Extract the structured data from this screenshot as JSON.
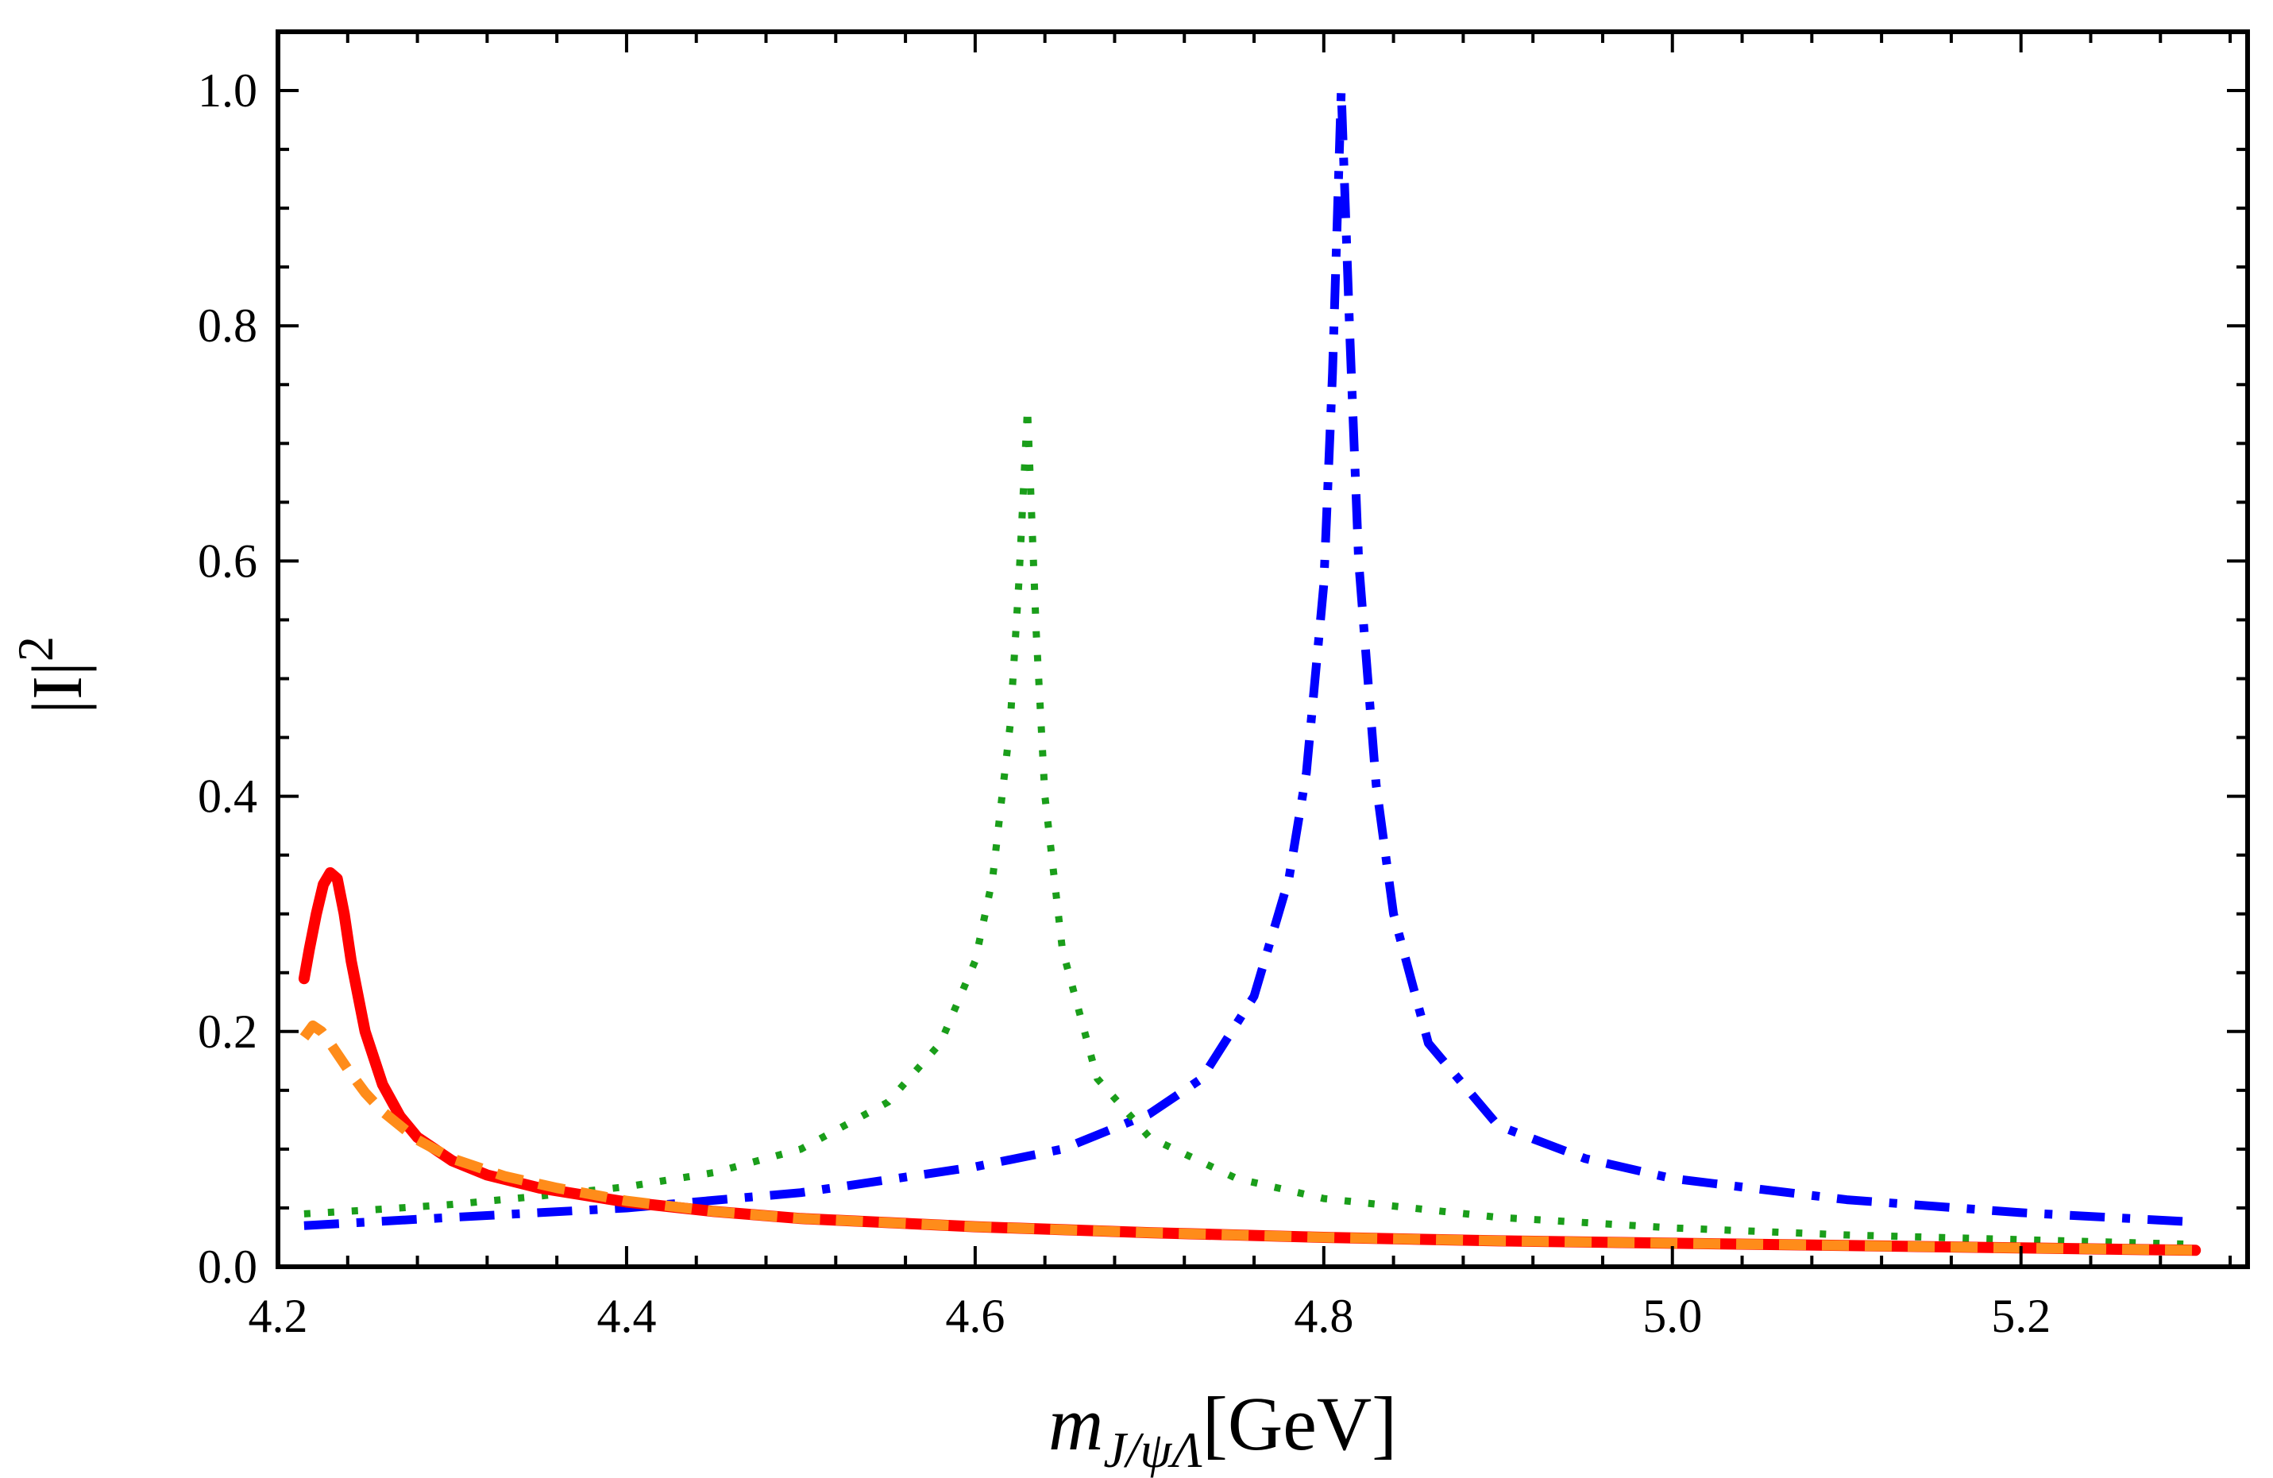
{
  "chart_data": {
    "type": "line",
    "title": "",
    "xlabel": {
      "main": "m",
      "subscript": "J/ψΛ",
      "unit": "[GeV]"
    },
    "ylabel": {
      "base": "|I|",
      "superscript": "2"
    },
    "xlim": [
      4.2,
      5.33
    ],
    "ylim": [
      0.0,
      1.05
    ],
    "xticks": [
      4.2,
      4.4,
      4.6,
      4.8,
      5.0,
      5.2
    ],
    "xtick_labels": [
      "4.2",
      "4.4",
      "4.6",
      "4.8",
      "5.0",
      "5.2"
    ],
    "yticks": [
      0.0,
      0.2,
      0.4,
      0.6,
      0.8,
      1.0
    ],
    "ytick_labels": [
      "0.0",
      "0.2",
      "0.4",
      "0.6",
      "0.8",
      "1.0"
    ],
    "grid": false,
    "series": [
      {
        "name": "solid-red",
        "style": "solid",
        "color": "#ff0000",
        "x": [
          4.215,
          4.218,
          4.222,
          4.226,
          4.23,
          4.234,
          4.238,
          4.242,
          4.25,
          4.26,
          4.27,
          4.28,
          4.3,
          4.32,
          4.35,
          4.4,
          4.45,
          4.5,
          4.6,
          4.7,
          4.8,
          4.9,
          5.0,
          5.1,
          5.2,
          5.3
        ],
        "y": [
          0.245,
          0.27,
          0.3,
          0.325,
          0.335,
          0.33,
          0.3,
          0.26,
          0.2,
          0.155,
          0.128,
          0.11,
          0.09,
          0.078,
          0.067,
          0.055,
          0.047,
          0.041,
          0.034,
          0.029,
          0.025,
          0.022,
          0.02,
          0.018,
          0.016,
          0.014
        ]
      },
      {
        "name": "dashed-orange",
        "style": "dashed",
        "color": "#ff8c1a",
        "x": [
          4.215,
          4.22,
          4.225,
          4.23,
          4.24,
          4.25,
          4.26,
          4.28,
          4.3,
          4.33,
          4.36,
          4.4,
          4.45,
          4.5,
          4.6,
          4.7,
          4.8,
          4.9,
          5.0,
          5.1,
          5.2,
          5.3
        ],
        "y": [
          0.195,
          0.205,
          0.2,
          0.19,
          0.168,
          0.148,
          0.132,
          0.108,
          0.092,
          0.077,
          0.067,
          0.056,
          0.047,
          0.041,
          0.034,
          0.029,
          0.025,
          0.022,
          0.02,
          0.018,
          0.016,
          0.014
        ]
      },
      {
        "name": "dotted-green",
        "style": "dotted",
        "color": "#1a9e1a",
        "x": [
          4.215,
          4.25,
          4.3,
          4.35,
          4.4,
          4.45,
          4.5,
          4.55,
          4.58,
          4.6,
          4.61,
          4.62,
          4.625,
          4.63,
          4.635,
          4.64,
          4.65,
          4.67,
          4.7,
          4.75,
          4.8,
          4.9,
          5.0,
          5.1,
          5.2,
          5.3
        ],
        "y": [
          0.045,
          0.048,
          0.053,
          0.06,
          0.068,
          0.08,
          0.1,
          0.14,
          0.19,
          0.26,
          0.33,
          0.46,
          0.58,
          0.73,
          0.54,
          0.4,
          0.27,
          0.16,
          0.11,
          0.075,
          0.058,
          0.042,
          0.033,
          0.027,
          0.023,
          0.019
        ]
      },
      {
        "name": "dash-dot-blue",
        "style": "dashdot",
        "color": "#0000ff",
        "x": [
          4.215,
          4.3,
          4.4,
          4.5,
          4.6,
          4.65,
          4.7,
          4.73,
          4.76,
          4.78,
          4.79,
          4.8,
          4.805,
          4.81,
          4.815,
          4.82,
          4.83,
          4.84,
          4.86,
          4.9,
          4.95,
          5.0,
          5.1,
          5.2,
          5.3
        ],
        "y": [
          0.035,
          0.042,
          0.05,
          0.063,
          0.085,
          0.1,
          0.13,
          0.16,
          0.23,
          0.33,
          0.42,
          0.58,
          0.76,
          1.0,
          0.79,
          0.6,
          0.41,
          0.3,
          0.19,
          0.12,
          0.092,
          0.075,
          0.057,
          0.046,
          0.038
        ]
      }
    ]
  }
}
